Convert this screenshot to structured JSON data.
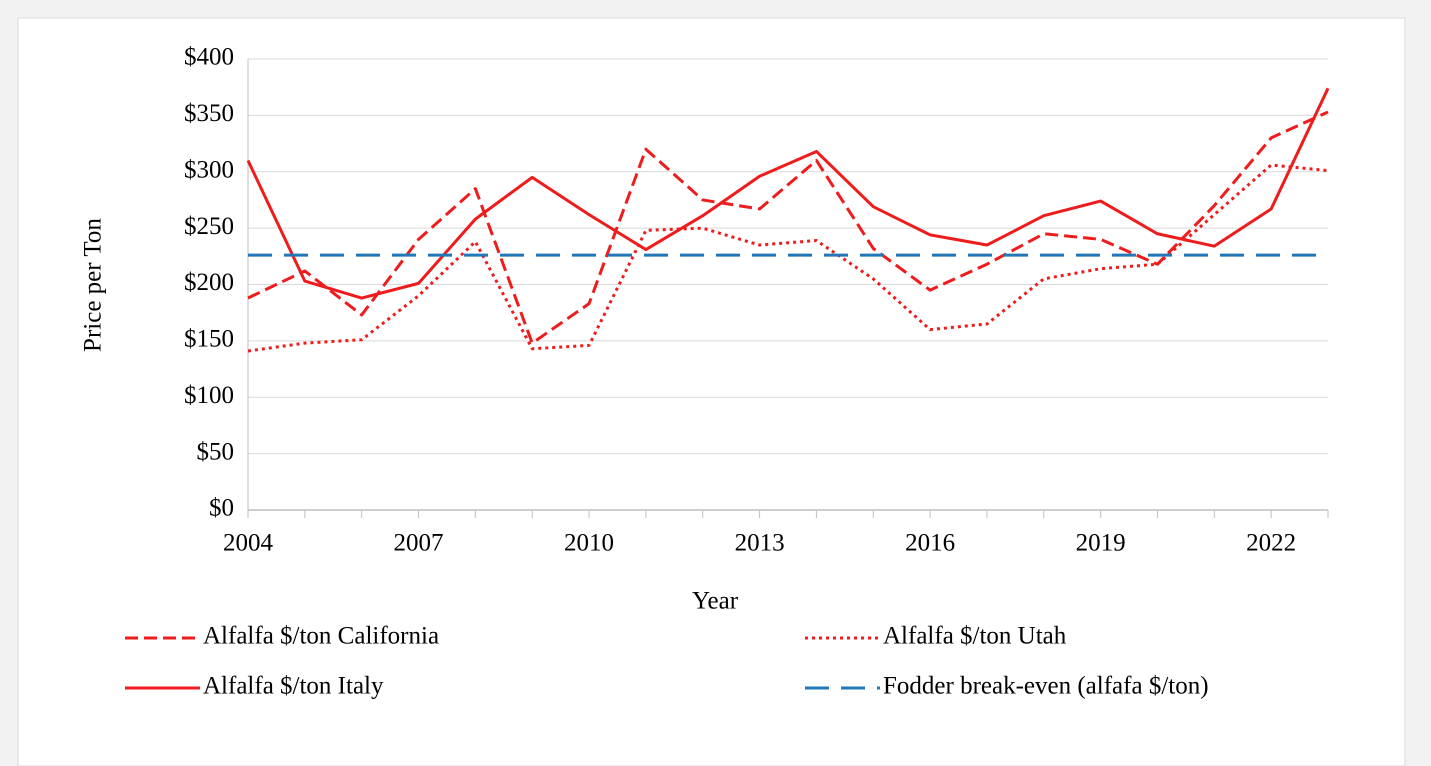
{
  "chart_data": {
    "type": "line",
    "x_label": "Year",
    "y_label": "Price per Ton",
    "x": [
      2004,
      2005,
      2006,
      2007,
      2008,
      2009,
      2010,
      2011,
      2012,
      2013,
      2014,
      2015,
      2016,
      2017,
      2018,
      2019,
      2020,
      2021,
      2022,
      2023
    ],
    "series": [
      {
        "name": "Alfalfa $/ton California",
        "color": "#ee1c1c",
        "dash": "dashed",
        "values": [
          188,
          212,
          173,
          240,
          285,
          148,
          183,
          320,
          275,
          267,
          310,
          232,
          195,
          218,
          245,
          240,
          218,
          270,
          330,
          353
        ]
      },
      {
        "name": "Alfalfa $/ton Utah",
        "color": "#ee1c1c",
        "dash": "dotted",
        "values": [
          141,
          148,
          151,
          190,
          238,
          143,
          146,
          248,
          250,
          235,
          239,
          205,
          160,
          165,
          205,
          214,
          218,
          262,
          306,
          301
        ]
      },
      {
        "name": "Alfalfa $/ton Italy",
        "color": "#ee1c1c",
        "dash": "solid",
        "values": [
          310,
          203,
          188,
          201,
          258,
          295,
          262,
          231,
          261,
          296,
          318,
          269,
          244,
          235,
          261,
          274,
          245,
          234,
          267,
          374
        ]
      },
      {
        "name": "Fodder break-even (alfafa $/ton)",
        "color": "#2177b8",
        "dash": "longdash",
        "values": [
          226,
          226,
          226,
          226,
          226,
          226,
          226,
          226,
          226,
          226,
          226,
          226,
          226,
          226,
          226,
          226,
          226,
          226,
          226,
          226
        ]
      }
    ],
    "xlim": [
      2004,
      2023
    ],
    "xticks": [
      2004,
      2007,
      2010,
      2013,
      2016,
      2019,
      2022
    ],
    "ylim": [
      0,
      400
    ],
    "yticks": [
      {
        "value": 0,
        "label": "$0"
      },
      {
        "value": 50,
        "label": "$50"
      },
      {
        "value": 100,
        "label": "$100"
      },
      {
        "value": 150,
        "label": "$150"
      },
      {
        "value": 200,
        "label": "$200"
      },
      {
        "value": 250,
        "label": "$250"
      },
      {
        "value": 300,
        "label": "$300"
      },
      {
        "value": 350,
        "label": "$350"
      },
      {
        "value": 400,
        "label": "$400"
      }
    ],
    "grid": true,
    "legend": "bottom"
  }
}
